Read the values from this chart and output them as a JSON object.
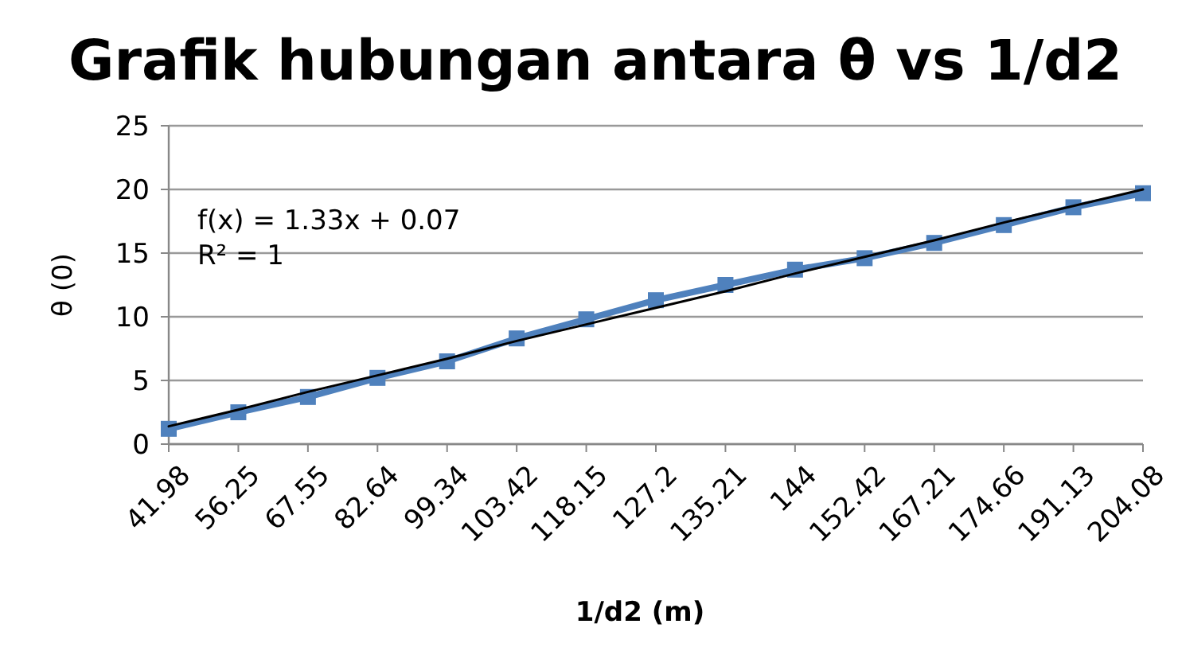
{
  "chart_data": {
    "type": "line",
    "title": "Grafik hubungan antara θ vs 1/d2",
    "xlabel": "1/d2 (m)",
    "ylabel": "θ (0)",
    "categories": [
      "41.98",
      "56.25",
      "67.55",
      "82.64",
      "99.34",
      "103.42",
      "118.15",
      "127.2",
      "135.21",
      "144",
      "152.42",
      "167.21",
      "174.66",
      "191.13",
      "204.08"
    ],
    "series": [
      {
        "color": "#4f81bd",
        "values": [
          1.2,
          2.5,
          3.7,
          5.2,
          6.5,
          8.3,
          9.8,
          11.3,
          12.5,
          13.7,
          14.6,
          15.8,
          17.2,
          18.6,
          19.7
        ],
        "marker": "square"
      },
      {
        "type": "line",
        "color": "#000000",
        "values": [
          1.4,
          2.7,
          4.1,
          5.4,
          6.7,
          8.1,
          9.4,
          10.7,
          12,
          13.4,
          14.7,
          16,
          17.4,
          18.7,
          20
        ],
        "marker": "none"
      }
    ],
    "ylim": [
      0,
      25
    ],
    "yticks": [
      0,
      5,
      10,
      15,
      20,
      25
    ],
    "grid": "y",
    "line_style": "solid",
    "annotations": [
      "f(x) = 1.33x + 0.07",
      "R² = 1"
    ]
  }
}
